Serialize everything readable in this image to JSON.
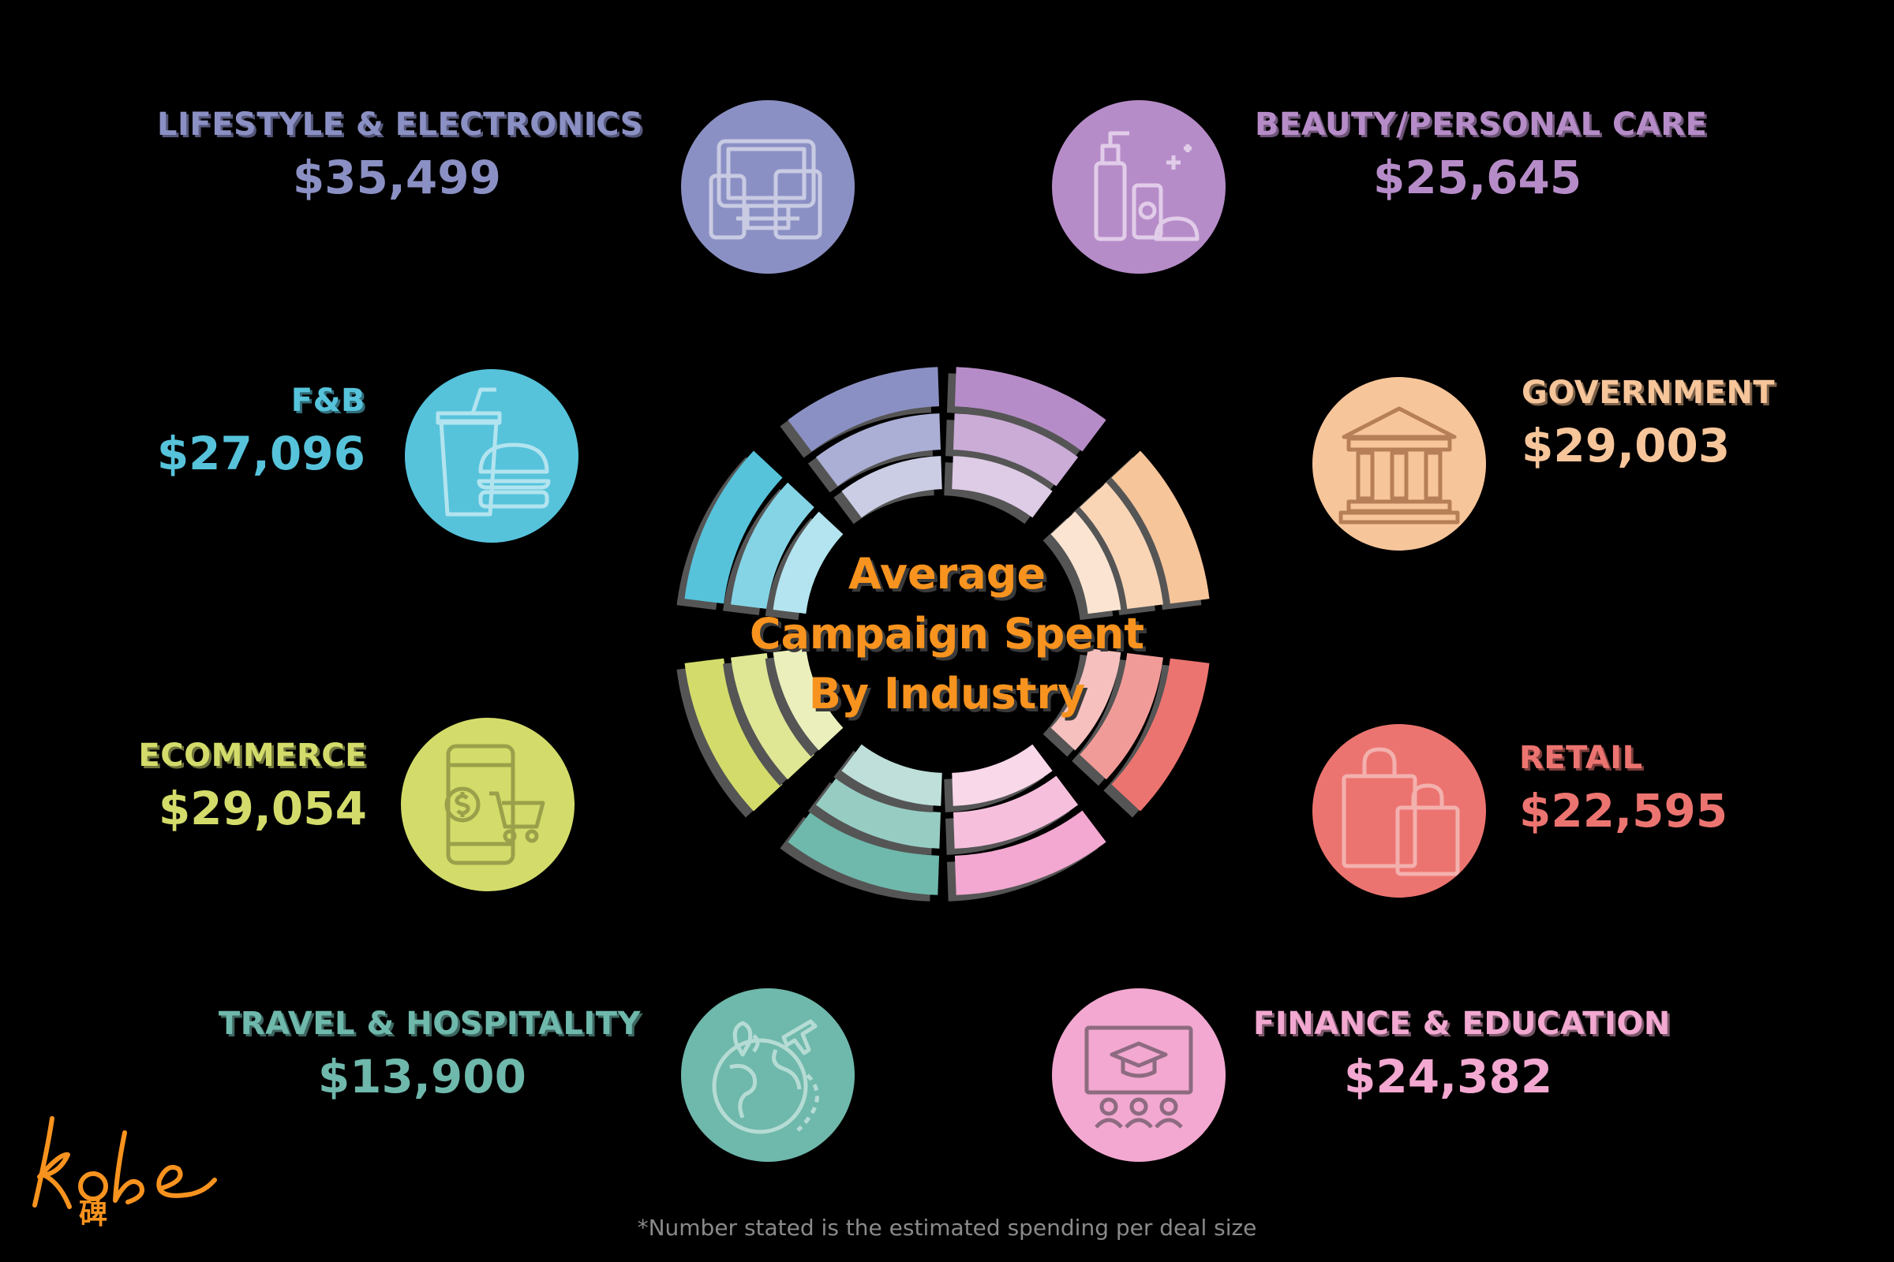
{
  "chart_data": {
    "type": "bar",
    "title_lines": [
      "Average",
      "Campaign Spent",
      "By Industry"
    ],
    "value_prefix": "$",
    "categories": [
      "LIFESTYLE & ELECTRONICS",
      "BEAUTY/PERSONAL CARE",
      "GOVERNMENT",
      "RETAIL",
      "FINANCE & EDUCATION",
      "TRAVEL & HOSPITALITY",
      "ECOMMERCE",
      "F&B"
    ],
    "values": [
      35499,
      25645,
      29003,
      22595,
      24382,
      13900,
      29054,
      27096
    ],
    "value_labels": [
      "$35,499",
      "$25,645",
      "$29,003",
      "$22,595",
      "$24,382",
      "$13,900",
      "$29,054",
      "$27,096"
    ],
    "colors": {
      "lifestyle": "#8b90c4",
      "beauty": "#b68cc8",
      "government": "#f7c59a",
      "retail": "#ec7470",
      "finance": "#f2a8d0",
      "travel": "#6fb8ac",
      "ecommerce": "#d3dc6a",
      "fnb": "#56c3db",
      "title": "#f7931e"
    },
    "footnote": "*Number stated is the estimated spending per deal size"
  },
  "icons": {
    "lifestyle": "devices-icon",
    "beauty": "cosmetics-icon",
    "government": "government-building-icon",
    "retail": "shopping-bags-icon",
    "finance": "classroom-icon",
    "travel": "globe-travel-icon",
    "ecommerce": "mobile-shopping-icon",
    "fnb": "fast-food-icon"
  },
  "logo": {
    "text": "kobe",
    "subtext": "碑"
  }
}
